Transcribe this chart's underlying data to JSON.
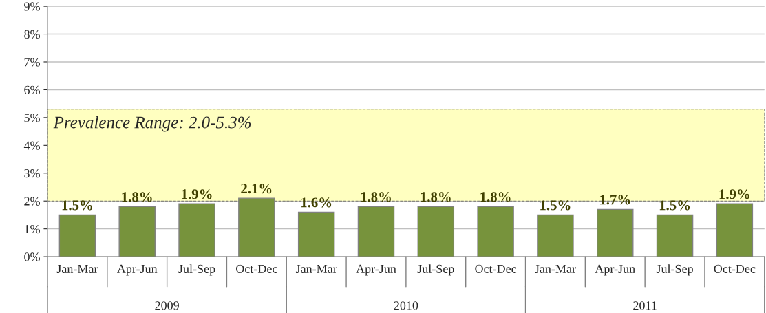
{
  "chart_data": {
    "type": "bar",
    "categories": [
      "Jan-Mar",
      "Apr-Jun",
      "Jul-Sep",
      "Oct-Dec",
      "Jan-Mar",
      "Apr-Jun",
      "Jul-Sep",
      "Oct-Dec",
      "Jan-Mar",
      "Apr-Jun",
      "Jul-Sep",
      "Oct-Dec"
    ],
    "values": [
      1.5,
      1.8,
      1.9,
      2.1,
      1.6,
      1.8,
      1.8,
      1.8,
      1.5,
      1.7,
      1.5,
      1.9
    ],
    "value_labels": [
      "1.5%",
      "1.8%",
      "1.9%",
      "2.1%",
      "1.6%",
      "1.8%",
      "1.8%",
      "1.8%",
      "1.5%",
      "1.7%",
      "1.5%",
      "1.9%"
    ],
    "color": "#77933c",
    "ylim": [
      0,
      9
    ],
    "yticks": [
      {
        "value": 0,
        "label": "0%"
      },
      {
        "value": 1,
        "label": "1%"
      },
      {
        "value": 2,
        "label": "2%"
      },
      {
        "value": 3,
        "label": "3%"
      },
      {
        "value": 4,
        "label": "4%"
      },
      {
        "value": 5,
        "label": "5%"
      },
      {
        "value": 6,
        "label": "6%"
      },
      {
        "value": 7,
        "label": "7%"
      },
      {
        "value": 8,
        "label": "8%"
      },
      {
        "value": 9,
        "label": "9%"
      }
    ],
    "grid": "y",
    "bands": [
      {
        "axis": "y",
        "from": 2.0,
        "to": 5.3,
        "label": "Prevalence Range: 2.0-5.3%",
        "color": "#ffffc0"
      }
    ],
    "annotations": [
      "2009",
      "2010",
      "2011"
    ]
  }
}
